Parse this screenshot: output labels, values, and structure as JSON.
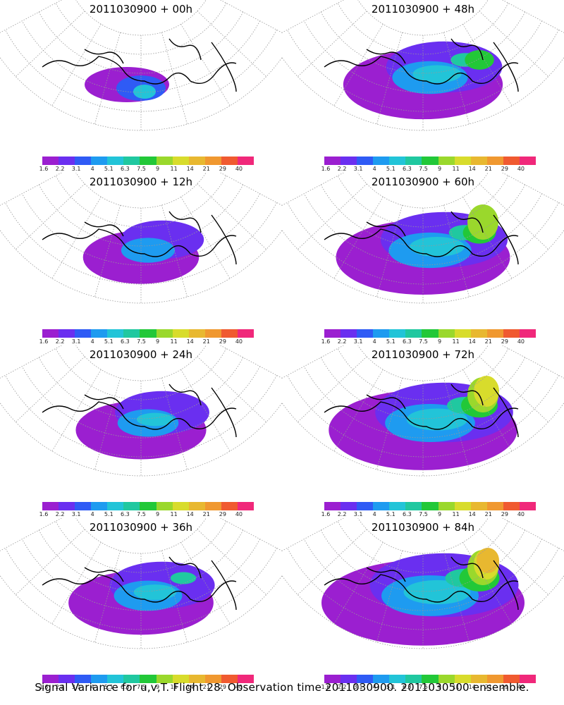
{
  "panels": [
    {
      "title": "2011030900 + 00h",
      "lead_hours": 0
    },
    {
      "title": "2011030900 + 48h",
      "lead_hours": 48
    },
    {
      "title": "2011030900 + 12h",
      "lead_hours": 12
    },
    {
      "title": "2011030900 + 60h",
      "lead_hours": 60
    },
    {
      "title": "2011030900 + 24h",
      "lead_hours": 24
    },
    {
      "title": "2011030900 + 72h",
      "lead_hours": 72
    },
    {
      "title": "2011030900 + 36h",
      "lead_hours": 36
    },
    {
      "title": "2011030900 + 84h",
      "lead_hours": 84
    }
  ],
  "colorbar": {
    "labels": [
      "1.6",
      "2.2",
      "3.1",
      "4",
      "5.1",
      "6.3",
      "7.5",
      "9",
      "11",
      "14",
      "21",
      "29",
      "40"
    ],
    "colors": [
      "#9b1fd0",
      "#6a2ff0",
      "#2f5bf5",
      "#1e9bf0",
      "#22c4d8",
      "#20c8a0",
      "#22c838",
      "#9ad82c",
      "#d8dc2c",
      "#e8b830",
      "#f09830",
      "#f05a30",
      "#f0287a"
    ]
  },
  "caption": "Signal Variance for u,v,T. Flight 28. Observation time 2011030900. 2011030500 ensemble."
}
